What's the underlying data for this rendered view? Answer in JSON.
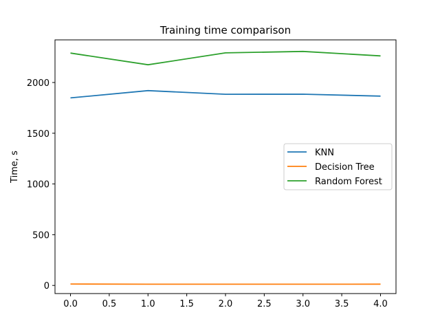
{
  "chart_data": {
    "type": "line",
    "title": "Training time comparison",
    "xlabel": "",
    "ylabel": "Time, s",
    "x": [
      0,
      1,
      2,
      3,
      4
    ],
    "xlim": [
      -0.2,
      4.2
    ],
    "ylim": [
      -80,
      2420
    ],
    "xticks": [
      0.0,
      0.5,
      1.0,
      1.5,
      2.0,
      2.5,
      3.0,
      3.5,
      4.0
    ],
    "xtick_labels": [
      "0.0",
      "0.5",
      "1.0",
      "1.5",
      "2.0",
      "2.5",
      "3.0",
      "3.5",
      "4.0"
    ],
    "yticks": [
      0,
      500,
      1000,
      1500,
      2000
    ],
    "ytick_labels": [
      "0",
      "500",
      "1000",
      "1500",
      "2000"
    ],
    "grid": false,
    "legend_position": "center-right",
    "series": [
      {
        "name": "KNN",
        "color": "#1f77b4",
        "values": [
          1848,
          1920,
          1884,
          1885,
          1866
        ]
      },
      {
        "name": "Decision Tree",
        "color": "#ff7f0e",
        "values": [
          14,
          12,
          12,
          12,
          13
        ]
      },
      {
        "name": "Random Forest",
        "color": "#2ca02c",
        "values": [
          2290,
          2175,
          2292,
          2306,
          2262
        ]
      }
    ]
  }
}
